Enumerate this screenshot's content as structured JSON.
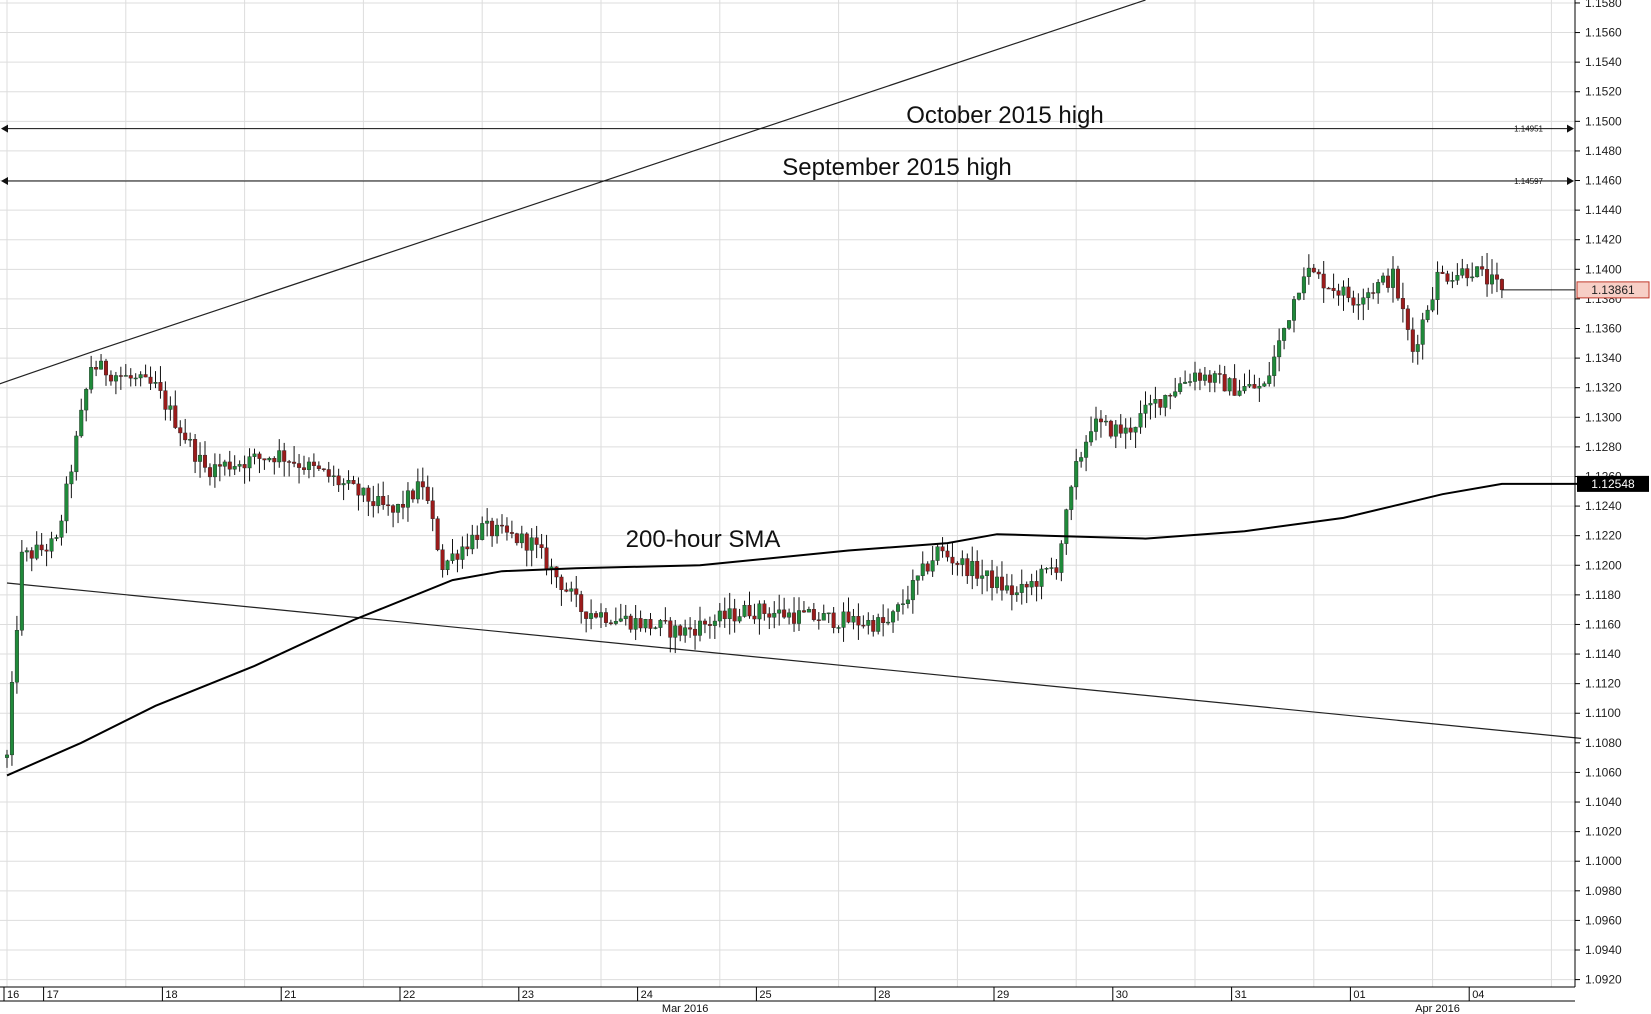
{
  "chart_data": {
    "type": "candlestick",
    "title": "",
    "ylim": [
      1.0915,
      1.1582
    ],
    "y_ticks": [
      "1.0920",
      "1.0940",
      "1.0960",
      "1.0980",
      "1.1000",
      "1.1020",
      "1.1040",
      "1.1060",
      "1.1080",
      "1.1100",
      "1.1120",
      "1.1140",
      "1.1160",
      "1.1180",
      "1.1200",
      "1.1220",
      "1.1240",
      "1.1260",
      "1.1280",
      "1.1300",
      "1.1320",
      "1.1340",
      "1.1360",
      "1.1380",
      "1.1400",
      "1.1420",
      "1.1440",
      "1.1460",
      "1.1480",
      "1.1500",
      "1.1520",
      "1.1540",
      "1.1560",
      "1.1580"
    ],
    "x_dates": [
      {
        "label": "16",
        "index": 0
      },
      {
        "label": "17",
        "index": 8
      },
      {
        "label": "18",
        "index": 32
      },
      {
        "label": "21",
        "index": 56
      },
      {
        "label": "22",
        "index": 80
      },
      {
        "label": "23",
        "index": 104
      },
      {
        "label": "24",
        "index": 128
      },
      {
        "label": "25",
        "index": 152
      },
      {
        "label": "28",
        "index": 176
      },
      {
        "label": "29",
        "index": 200
      },
      {
        "label": "30",
        "index": 224
      },
      {
        "label": "31",
        "index": 248
      },
      {
        "label": "01",
        "index": 272
      },
      {
        "label": "04",
        "index": 296
      }
    ],
    "x_months": [
      {
        "label": "Mar 2016",
        "index": 137
      },
      {
        "label": "Apr 2016",
        "index": 289
      }
    ],
    "anchors": [
      [
        0,
        1.107
      ],
      [
        3,
        1.1205
      ],
      [
        10,
        1.1215
      ],
      [
        17,
        1.1335
      ],
      [
        30,
        1.132
      ],
      [
        40,
        1.1265
      ],
      [
        55,
        1.1275
      ],
      [
        65,
        1.126
      ],
      [
        78,
        1.1235
      ],
      [
        84,
        1.1255
      ],
      [
        88,
        1.12
      ],
      [
        96,
        1.1225
      ],
      [
        106,
        1.1215
      ],
      [
        116,
        1.117
      ],
      [
        136,
        1.1155
      ],
      [
        150,
        1.117
      ],
      [
        162,
        1.1165
      ],
      [
        178,
        1.116
      ],
      [
        188,
        1.121
      ],
      [
        204,
        1.118
      ],
      [
        212,
        1.12
      ],
      [
        216,
        1.1265
      ],
      [
        219,
        1.1295
      ],
      [
        226,
        1.129
      ],
      [
        232,
        1.131
      ],
      [
        240,
        1.133
      ],
      [
        248,
        1.132
      ],
      [
        254,
        1.132
      ],
      [
        262,
        1.14
      ],
      [
        272,
        1.138
      ],
      [
        280,
        1.1395
      ],
      [
        284,
        1.1345
      ],
      [
        289,
        1.1395
      ],
      [
        296,
        1.14
      ],
      [
        302,
        1.1386
      ]
    ],
    "candle_count": 303,
    "sma": {
      "label": "200-hour SMA",
      "points": [
        [
          0,
          1.1058
        ],
        [
          15,
          1.108
        ],
        [
          30,
          1.1105
        ],
        [
          50,
          1.1132
        ],
        [
          70,
          1.1163
        ],
        [
          90,
          1.119
        ],
        [
          100,
          1.1196
        ],
        [
          115,
          1.1198
        ],
        [
          140,
          1.12
        ],
        [
          170,
          1.121
        ],
        [
          190,
          1.1215
        ],
        [
          200,
          1.1221
        ],
        [
          210,
          1.122
        ],
        [
          230,
          1.1218
        ],
        [
          250,
          1.1223
        ],
        [
          270,
          1.1232
        ],
        [
          290,
          1.1248
        ],
        [
          302,
          1.1255
        ],
        [
          318,
          1.1255
        ]
      ],
      "value_box": "1.12548"
    },
    "levels": [
      {
        "label": "October 2015 high",
        "value": 1.14951,
        "value_text": "1.14951"
      },
      {
        "label": "September 2015 high",
        "value": 1.14597,
        "value_text": "1.14597"
      }
    ],
    "trendlines": [
      [
        [
          -2,
          1.1322
        ],
        [
          17,
          1.1344
        ],
        [
          230,
          1.1582
        ]
      ],
      [
        [
          0,
          1.1188
        ],
        [
          318,
          1.1083
        ]
      ]
    ],
    "last_price": {
      "value": 1.13861,
      "text": "1.13861"
    },
    "colors": {
      "up": "#1f8a3a",
      "down": "#9b1b1b",
      "wick": "#111111",
      "grid": "#dddddd",
      "price_box_bg": "#f7cfc6",
      "price_box_border": "#c0392b",
      "sma_box_bg": "#000000"
    }
  },
  "annotations": {
    "october_label": "October 2015 high",
    "september_label": "September 2015 high",
    "sma_label": "200-hour SMA"
  }
}
